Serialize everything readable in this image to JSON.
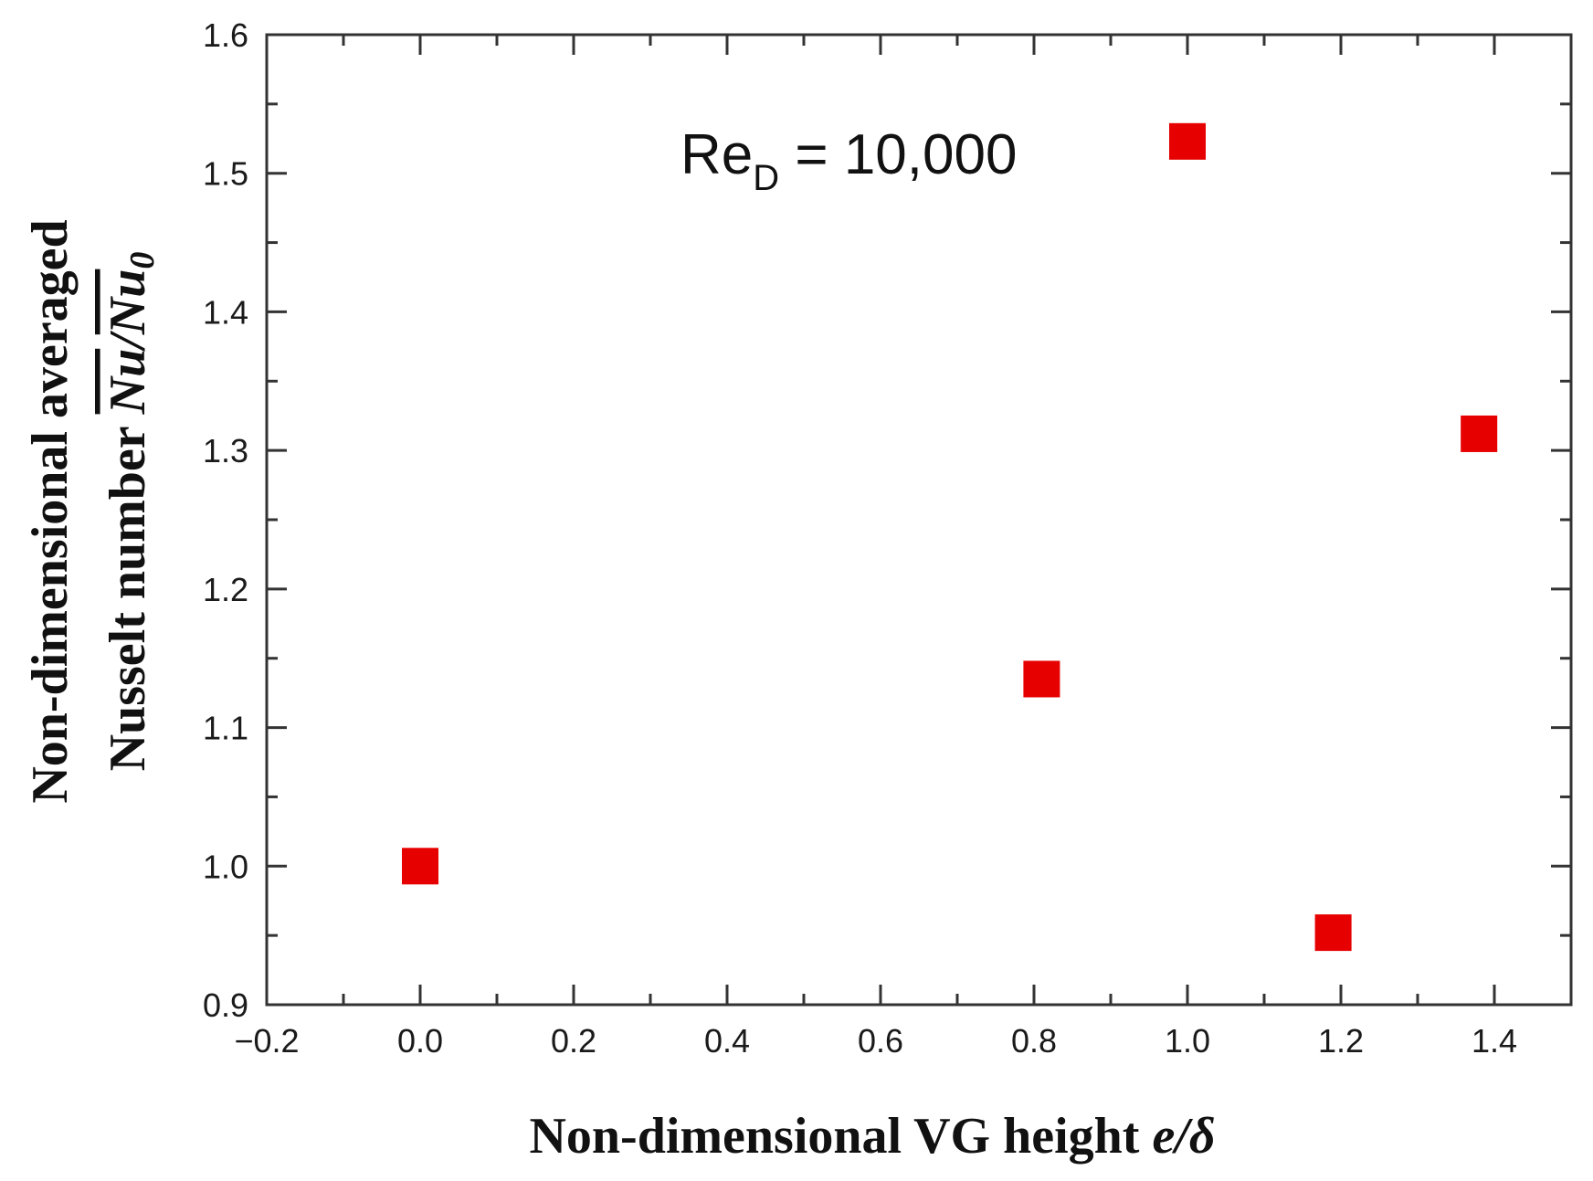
{
  "chart_data": {
    "type": "scatter",
    "title": "",
    "xlabel": {
      "text": "Non-dimensional VG height ",
      "symbol": "e/δ"
    },
    "ylabel": {
      "line1": "Non-dimensional averaged",
      "line2_text": "Nusselt number ",
      "symbol_num": "Nu",
      "symbol_slash": "/",
      "symbol_den": "Nu",
      "symbol_den_sub": "0"
    },
    "annotation": {
      "main": "Re",
      "sub": "D",
      "rest": " = 10,000"
    },
    "xlim": [
      -0.2,
      1.5
    ],
    "ylim": [
      0.9,
      1.6
    ],
    "xticks": [
      -0.2,
      0.0,
      0.2,
      0.4,
      0.6,
      0.8,
      1.0,
      1.2,
      1.4
    ],
    "xtick_labels": [
      "−0.2",
      "0.0",
      "0.2",
      "0.4",
      "0.6",
      "0.8",
      "1.0",
      "1.2",
      "1.4"
    ],
    "yticks": [
      0.9,
      1.0,
      1.1,
      1.2,
      1.3,
      1.4,
      1.5,
      1.6
    ],
    "ytick_labels": [
      "0.9",
      "1.0",
      "1.1",
      "1.2",
      "1.3",
      "1.4",
      "1.5",
      "1.6"
    ],
    "grid": false,
    "marker": "square",
    "marker_color": "#e60000",
    "series": [
      {
        "name": "ReD = 10,000",
        "x": [
          0.0,
          0.81,
          1.0,
          1.19,
          1.38
        ],
        "y": [
          1.0,
          1.135,
          1.523,
          0.952,
          1.312
        ]
      }
    ]
  }
}
